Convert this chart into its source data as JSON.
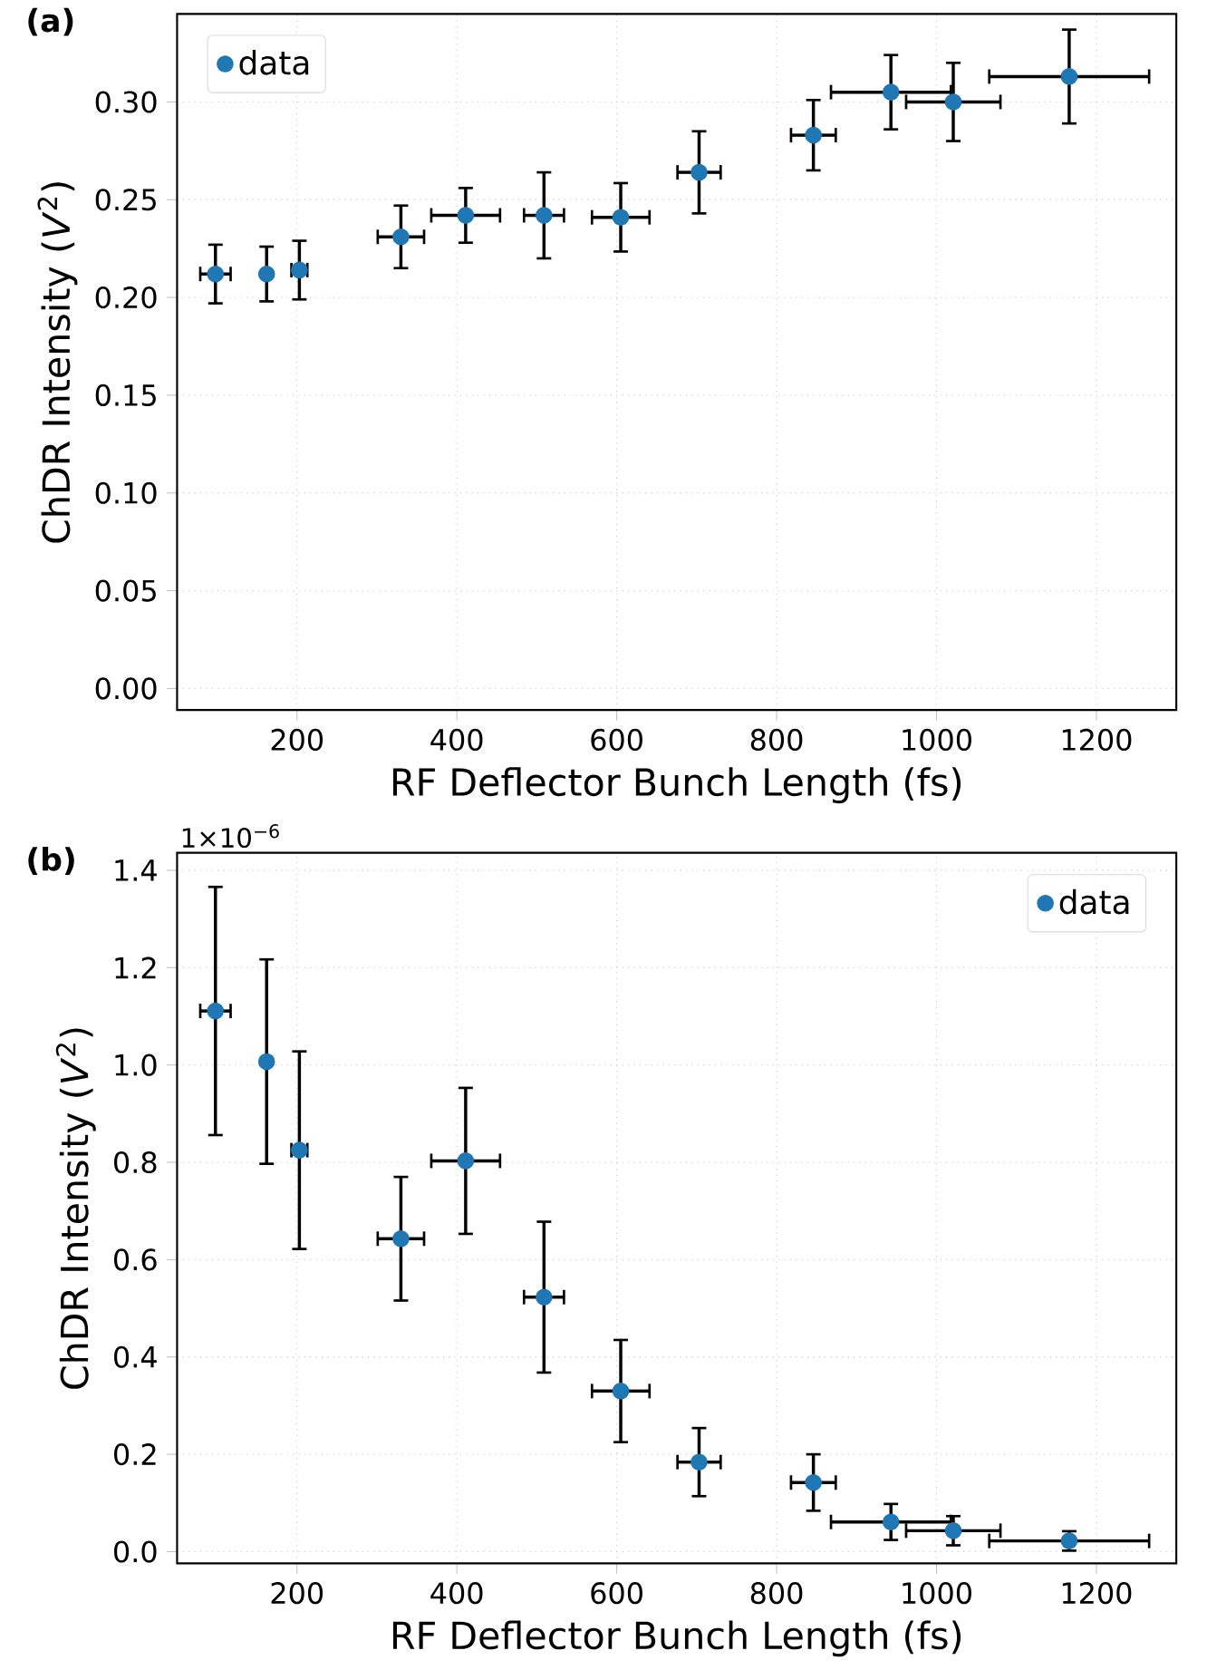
{
  "chart_data": [
    {
      "type": "scatter",
      "title": "(a)",
      "xlabel": "RF Deflector Bunch Length (fs)",
      "ylabel": "ChDR Intensity (*V*$^{2}$)",
      "x": [
        98,
        162,
        203,
        330,
        411,
        509,
        605,
        703,
        846,
        943,
        1021,
        1166
      ],
      "series": [
        {
          "name": "data",
          "color": "#1f77b4",
          "values": [
            0.212,
            0.212,
            0.214,
            0.231,
            0.242,
            0.242,
            0.241,
            0.264,
            0.283,
            0.305,
            0.3,
            0.313
          ],
          "errors": [
            0.015,
            0.014,
            0.015,
            0.016,
            0.014,
            0.022,
            0.0175,
            0.021,
            0.018,
            0.019,
            0.02,
            0.024
          ],
          "xerrors": [
            19,
            null,
            10,
            29,
            43,
            25,
            36,
            27,
            28,
            75,
            59,
            100
          ]
        }
      ],
      "xlim": [
        50,
        1300
      ],
      "ylim": [
        -0.011,
        0.345
      ],
      "xticks": [
        200,
        400,
        600,
        800,
        1000,
        1200
      ],
      "yticks": [
        {
          "value": 0,
          "label": "0.00"
        },
        {
          "value": 0.05,
          "label": "0.05"
        },
        {
          "value": 0.1,
          "label": "0.10"
        },
        {
          "value": 0.15,
          "label": "0.15"
        },
        {
          "value": 0.2,
          "label": "0.20"
        },
        {
          "value": 0.25,
          "label": "0.25"
        },
        {
          "value": 0.3,
          "label": "0.30"
        }
      ],
      "grid": true,
      "legend": "top left",
      "marker": "circle"
    },
    {
      "type": "scatter",
      "title": "(b)",
      "xlabel": "RF Deflector Bunch Length (fs)",
      "ylabel": "ChDR Intensity (*V*$^{2}$)",
      "annotations": [
        "1×10$^{−6}$"
      ],
      "x": [
        98,
        162,
        203,
        330,
        411,
        509,
        605,
        703,
        846,
        943,
        1021,
        1166
      ],
      "series": [
        {
          "name": "data",
          "color": "#1f77b4",
          "values": [
            1.111,
            1.007,
            0.825,
            0.643,
            0.803,
            0.523,
            0.33,
            0.184,
            0.142,
            0.061,
            0.043,
            0.022
          ],
          "errors": [
            0.255,
            0.21,
            0.203,
            0.127,
            0.15,
            0.155,
            0.105,
            0.07,
            0.058,
            0.037,
            0.03,
            0.02
          ],
          "xerrors": [
            19,
            null,
            10,
            29,
            43,
            25,
            36,
            27,
            28,
            75,
            59,
            100
          ]
        }
      ],
      "xlim": [
        50,
        1300
      ],
      "ylim": [
        -0.024,
        1.436
      ],
      "xticks": [
        200,
        400,
        600,
        800,
        1000,
        1200
      ],
      "yticks": [
        {
          "value": 0,
          "label": "0.0"
        },
        {
          "value": 0.2,
          "label": "0.2"
        },
        {
          "value": 0.4,
          "label": "0.4"
        },
        {
          "value": 0.6,
          "label": "0.6"
        },
        {
          "value": 0.8,
          "label": "0.8"
        },
        {
          "value": 1.0,
          "label": "1.0"
        },
        {
          "value": 1.2,
          "label": "1.2"
        },
        {
          "value": 1.4,
          "label": "1.4"
        }
      ],
      "grid": true,
      "legend": "top right",
      "marker": "circle"
    }
  ]
}
